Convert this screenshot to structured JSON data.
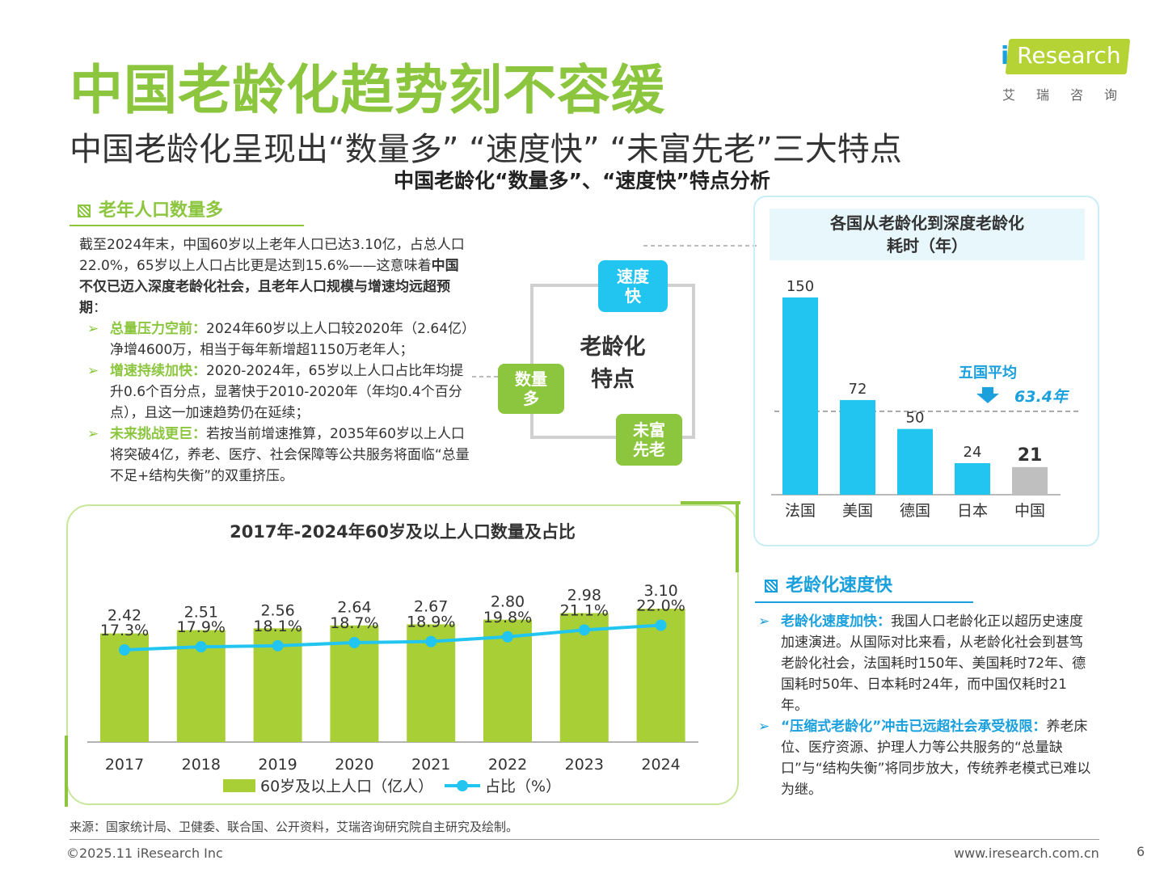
{
  "header": {
    "title": "中国老龄化趋势刻不容缓",
    "subtitle": "中国老龄化呈现出“数量多” “速度快” “未富先老”三大特点",
    "center_title": "中国老龄化“数量多”、“速度快”特点分析"
  },
  "logo": {
    "i": "i",
    "word": "Research",
    "cn": "艾瑞咨询"
  },
  "left_section": {
    "heading": "老年人口数量多",
    "intro_plain": "截至2024年末，中国60岁以上老年人口已达3.10亿，占总人口22.0%，65岁以上人口占比更是达到15.6%——这意味着",
    "intro_bold": "中国不仅已迈入深度老龄化社会，且老年人口规模与增速均远超预期",
    "intro_end": "：",
    "bullets": [
      {
        "label": "总量压力空前：",
        "text": "2024年60岁以上人口较2020年（2.64亿）净增4600万，相当于每年新增超1150万老年人；"
      },
      {
        "label": "增速持续加快：",
        "text": "2020-2024年，65岁以上人口占比年均提升0.6个百分点，显著快于2010-2020年（年均0.4个百分点），且这一加速趋势仍在延续；"
      },
      {
        "label": "未来挑战更巨：",
        "text": "若按当前增速推算，2035年60岁以上人口将突破4亿，养老、医疗、社会保障等公共服务将面临“总量不足+结构失衡”的双重挤压。"
      }
    ]
  },
  "diagram": {
    "center": "老龄化特点",
    "center_line1": "老龄化",
    "center_line2": "特点",
    "top": "速度快",
    "top_line1": "速度",
    "top_line2": "快",
    "left": "数量多",
    "left_line1": "数量",
    "left_line2": "多",
    "bottom": "未富先老",
    "bottom_line1": "未富",
    "bottom_line2": "先老"
  },
  "right_section": {
    "heading": "老龄化速度快",
    "bullets": [
      {
        "label": "老龄化速度加快：",
        "text": "我国人口老龄化正以超历史速度加速演进。从国际对比来看，从老龄化社会到甚笃老龄化社会，法国耗时150年、美国耗时72年、德国耗时50年、日本耗时24年，而中国仅耗时21年。"
      },
      {
        "label": "“压缩式老龄化”冲击已远超社会承受极限：",
        "text": "养老床位、医疗资源、护理人力等公共服务的“总量缺口”与“结构失衡”将同步放大，传统养老模式已难以为继。"
      }
    ]
  },
  "colors": {
    "green": "#8cc63f",
    "bar_green": "#a9cf36",
    "blue": "#1aa0dc",
    "cyan": "#22c4f0",
    "gray": "#bfbfbf"
  },
  "chart_data": [
    {
      "type": "bar",
      "title": "各国从老龄化到深度老龄化耗时（年）",
      "title_line1": "各国从老龄化到深度老龄化",
      "title_line2": "耗时（年）",
      "categories": [
        "法国",
        "美国",
        "德国",
        "日本",
        "中国"
      ],
      "values": [
        150,
        72,
        50,
        24,
        21
      ],
      "value_labels": [
        "150",
        "72",
        "50",
        "24",
        "21"
      ],
      "highlight": "中国",
      "ylim": [
        0,
        150
      ],
      "reference_line": {
        "value": 63.4,
        "label": "五国平均",
        "value_label": "63.4年"
      },
      "grid": false
    },
    {
      "type": "bar+line",
      "title": "2017年-2024年60岁及以上人口数量及占比",
      "categories": [
        "2017",
        "2018",
        "2019",
        "2020",
        "2021",
        "2022",
        "2023",
        "2024"
      ],
      "series": [
        {
          "name": "60岁及以上人口（亿人）",
          "type": "bar",
          "values": [
            2.42,
            2.51,
            2.56,
            2.64,
            2.67,
            2.8,
            2.98,
            3.1
          ],
          "labels": [
            "2.42",
            "2.51",
            "2.56",
            "2.64",
            "2.67",
            "2.80",
            "2.98",
            "3.10"
          ]
        },
        {
          "name": "占比（%）",
          "type": "line",
          "values": [
            17.3,
            17.9,
            18.1,
            18.7,
            18.9,
            19.8,
            21.1,
            22.0
          ],
          "labels": [
            "17.3%",
            "17.9%",
            "18.1%",
            "18.7%",
            "18.9%",
            "19.8%",
            "21.1%",
            "22.0%"
          ]
        }
      ],
      "legend_position": "bottom",
      "grid": false
    }
  ],
  "footer": {
    "source": "来源：国家统计局、卫健委、联合国、公开资料，艾瑞咨询研究院自主研究及绘制。",
    "copyright": "©2025.11 iResearch Inc",
    "website": "www.iresearch.com.cn",
    "page": "6"
  }
}
